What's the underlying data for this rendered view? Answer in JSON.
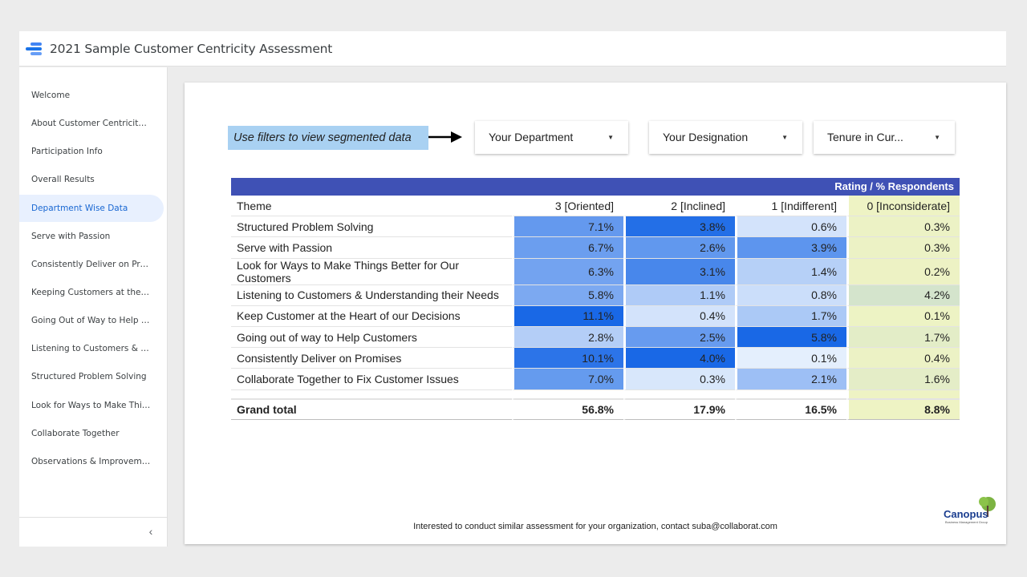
{
  "app": {
    "title": "2021 Sample Customer Centricity Assessment"
  },
  "sidebar": {
    "items": [
      {
        "label": "Welcome"
      },
      {
        "label": "About Customer Centricity ..."
      },
      {
        "label": "Participation Info"
      },
      {
        "label": "Overall Results"
      },
      {
        "label": "Department Wise Data"
      },
      {
        "label": "Serve with Passion"
      },
      {
        "label": "Consistently Deliver on Pro..."
      },
      {
        "label": "Keeping Customers at the H..."
      },
      {
        "label": "Going Out of Way to Help C..."
      },
      {
        "label": "Listening to Customers & Un..."
      },
      {
        "label": "Structured Problem Solving"
      },
      {
        "label": "Look for Ways to Make Thing..."
      },
      {
        "label": "Collaborate Together"
      },
      {
        "label": "Observations & Improvemen..."
      }
    ],
    "active_index": 4,
    "collapse_icon": "chevron-left-icon"
  },
  "filters": {
    "note": "Use filters to view segmented data",
    "department": "Your Department",
    "designation": "Your Designation",
    "tenure": "Tenure in Cur..."
  },
  "table": {
    "title": "Rating / % Respondents",
    "headers": [
      "Theme",
      "3 [Oriented]",
      "2 [Inclined]",
      "1 [Indifferent]",
      "0 [Inconsiderate]"
    ],
    "rows": [
      {
        "theme": "Structured Problem Solving",
        "v": [
          "7.1%",
          "3.8%",
          "0.6%",
          "0.3%"
        ]
      },
      {
        "theme": "Serve with Passion",
        "v": [
          "6.7%",
          "2.6%",
          "3.9%",
          "0.3%"
        ]
      },
      {
        "theme": "Look for Ways to Make Things Better for Our Customers",
        "v": [
          "6.3%",
          "3.1%",
          "1.4%",
          "0.2%"
        ]
      },
      {
        "theme": "Listening to Customers & Understanding their Needs",
        "v": [
          "5.8%",
          "1.1%",
          "0.8%",
          "4.2%"
        ]
      },
      {
        "theme": "Keep Customer at the Heart of our Decisions",
        "v": [
          "11.1%",
          "0.4%",
          "1.7%",
          "0.1%"
        ]
      },
      {
        "theme": "Going out of way to Help Customers",
        "v": [
          "2.8%",
          "2.5%",
          "5.8%",
          "1.7%"
        ]
      },
      {
        "theme": "Consistently Deliver on Promises",
        "v": [
          "10.1%",
          "4.0%",
          "0.1%",
          "0.4%"
        ]
      },
      {
        "theme": "Collaborate Together to Fix Customer Issues",
        "v": [
          "7.0%",
          "0.3%",
          "2.1%",
          "1.6%"
        ]
      }
    ],
    "grand": {
      "label": "Grand total",
      "v": [
        "56.8%",
        "17.9%",
        "16.5%",
        "8.8%"
      ]
    }
  },
  "footer": {
    "note": "Interested to conduct similar assessment for your organization, contact suba@collaborat.com"
  },
  "brand": {
    "name": "Canopus",
    "tagline": "Business Management Group"
  },
  "colors": {
    "header_bar": "#3f51b5",
    "active_nav": "#1967d2",
    "inconsiderate_bg": "#eef3c4"
  }
}
